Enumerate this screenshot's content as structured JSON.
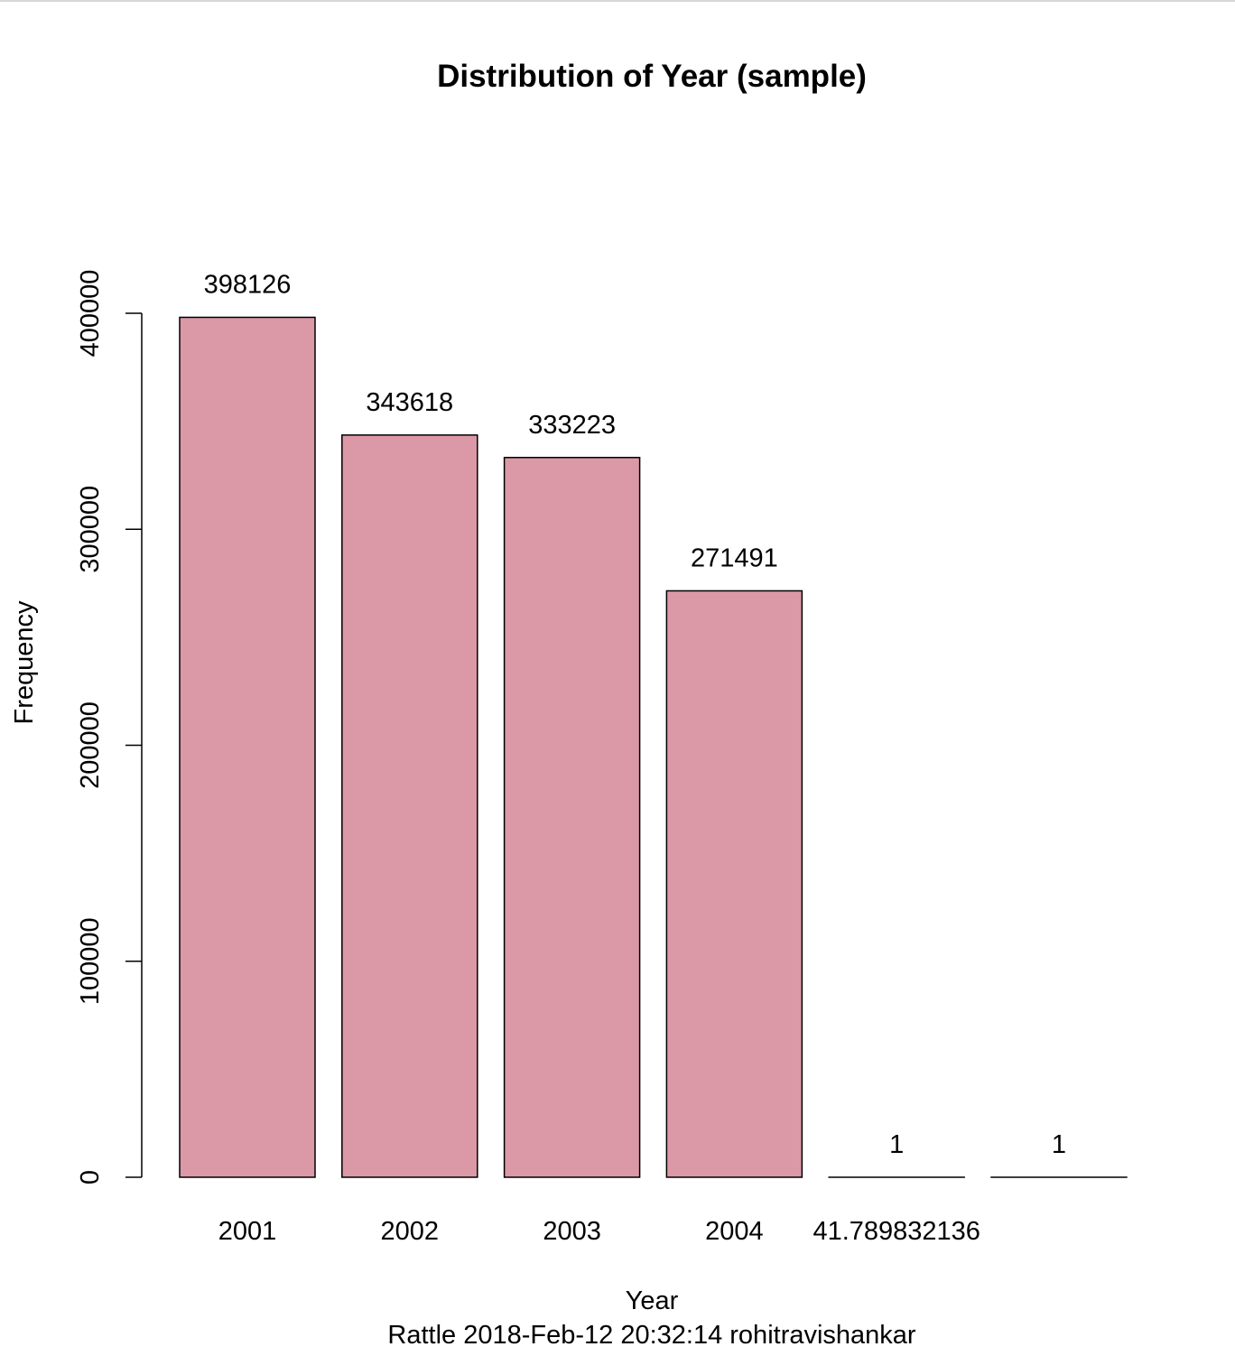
{
  "chart_data": {
    "type": "bar",
    "title": "Distribution of Year (sample)",
    "xlabel": "Year",
    "ylabel": "Frequency",
    "footer": "Rattle 2018-Feb-12 20:32:14 rohitravishankar",
    "categories": [
      "2001",
      "2002",
      "2003",
      "2004",
      "41.789832136",
      ""
    ],
    "values": [
      398126,
      343618,
      333223,
      271491,
      1,
      1
    ],
    "value_labels": [
      "398126",
      "343618",
      "333223",
      "271491",
      "1",
      "1"
    ],
    "yticks": [
      0,
      100000,
      200000,
      300000,
      400000
    ],
    "ytick_labels": [
      "0",
      "100000",
      "200000",
      "300000",
      "400000"
    ],
    "ylim": [
      0,
      400000
    ],
    "grid": false,
    "legend": "none",
    "colors": {
      "bar_fill": "#db98a7",
      "bar_stroke": "#000000"
    }
  }
}
